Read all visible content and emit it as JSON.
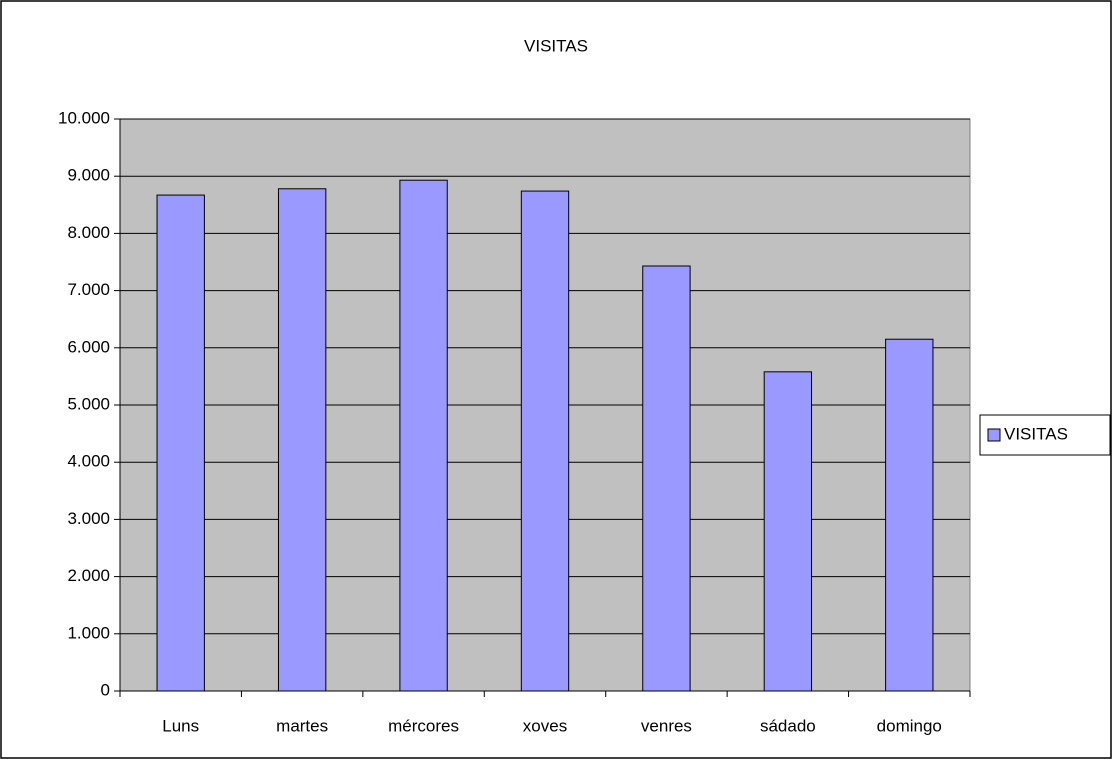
{
  "chart_data": {
    "type": "bar",
    "title": "VISITAS",
    "categories": [
      "Luns",
      "martes",
      "mércores",
      "xoves",
      "venres",
      "sádado",
      "domingo"
    ],
    "series": [
      {
        "name": "VISITAS",
        "color": "#9999ff",
        "values": [
          8670,
          8780,
          8930,
          8740,
          7430,
          5580,
          6150
        ]
      }
    ],
    "ylim": [
      0,
      10000
    ],
    "yticks": [
      0,
      {
        "value": 1000,
        "label": "1.000"
      },
      {
        "value": 2000,
        "label": "2.000"
      },
      {
        "value": 3000,
        "label": "3.000"
      },
      {
        "value": 4000,
        "label": "4.000"
      },
      {
        "value": 5000,
        "label": "5.000"
      },
      {
        "value": 6000,
        "label": "6.000"
      },
      {
        "value": 7000,
        "label": "7.000"
      },
      {
        "value": 8000,
        "label": "8.000"
      },
      {
        "value": 9000,
        "label": "9.000"
      },
      {
        "value": 10000,
        "label": "10.000"
      }
    ],
    "grid": true,
    "legend": "right"
  }
}
